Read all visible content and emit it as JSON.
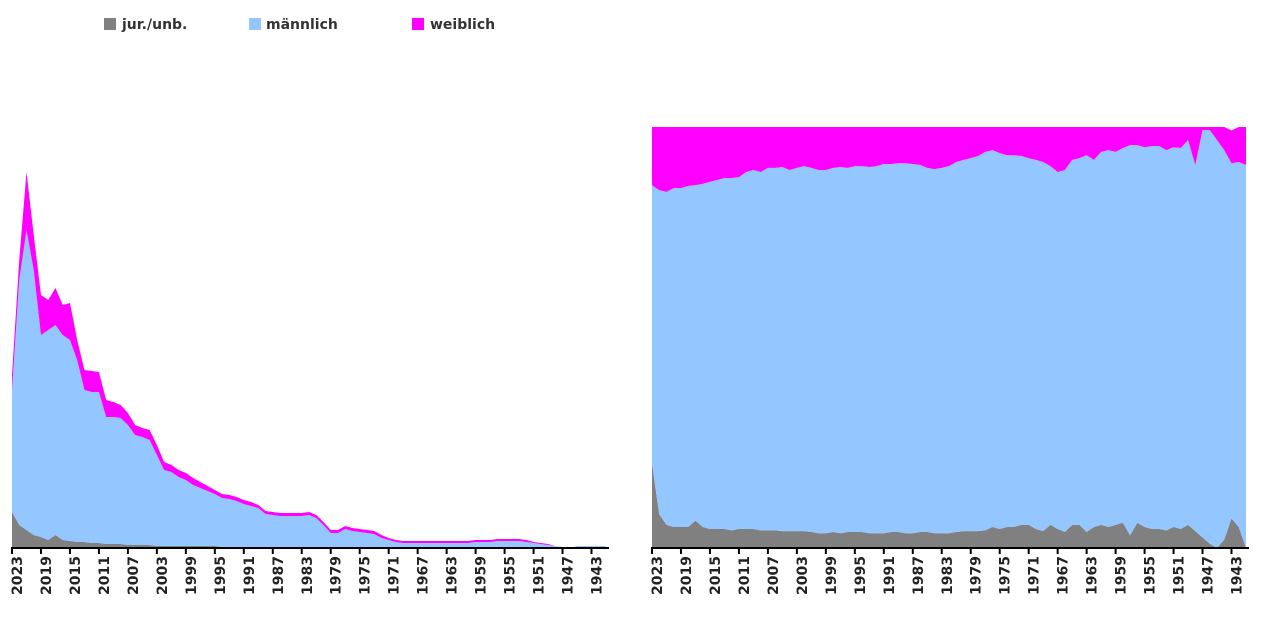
{
  "chart_data": [
    {
      "type": "stacked-area",
      "x": [
        2023,
        2022,
        2021,
        2020,
        2019,
        2018,
        2017,
        2016,
        2015,
        2014,
        2013,
        2012,
        2011,
        2010,
        2009,
        2008,
        2007,
        2006,
        2005,
        2004,
        2003,
        2002,
        2001,
        2000,
        1999,
        1998,
        1997,
        1996,
        1995,
        1994,
        1993,
        1992,
        1991,
        1990,
        1989,
        1988,
        1987,
        1986,
        1985,
        1984,
        1983,
        1982,
        1981,
        1980,
        1979,
        1978,
        1977,
        1976,
        1975,
        1974,
        1973,
        1972,
        1971,
        1970,
        1969,
        1968,
        1967,
        1966,
        1965,
        1964,
        1963,
        1962,
        1961,
        1960,
        1959,
        1958,
        1957,
        1956,
        1955,
        1954,
        1953,
        1952,
        1951,
        1950,
        1949,
        1948,
        1947,
        1946,
        1945,
        1944,
        1943,
        1942,
        1941
      ],
      "xticks": [
        2023,
        2019,
        2015,
        2011,
        2007,
        2003,
        1999,
        1995,
        1991,
        1987,
        1983,
        1979,
        1975,
        1971,
        1967,
        1963,
        1959,
        1955,
        1951,
        1947,
        1943
      ],
      "ylim": [
        0,
        380
      ],
      "series": [
        {
          "name": "jur./unb.",
          "color": "#808080",
          "values": [
            36,
            23,
            18,
            13,
            11,
            8,
            13,
            8,
            7,
            6,
            6,
            5,
            5,
            4,
            4,
            4,
            3,
            3,
            3,
            3,
            2,
            2,
            2,
            2,
            2,
            2,
            2,
            2,
            2,
            1,
            1,
            1,
            1,
            1,
            1,
            1,
            1,
            1,
            1,
            1,
            1,
            1,
            1,
            1,
            1,
            1,
            1,
            1,
            1,
            1,
            1,
            1,
            1,
            1,
            1,
            1,
            1,
            1,
            1,
            1,
            1,
            1,
            1,
            1,
            1,
            1,
            1,
            1,
            1,
            1,
            1,
            1,
            0.5,
            0.5,
            0.5,
            0,
            0,
            0,
            0,
            0,
            0,
            0,
            0
          ]
        },
        {
          "name": "männlich",
          "color": "#94c6ff",
          "values": [
            122,
            245,
            300,
            265,
            202,
            210,
            210,
            205,
            201,
            182,
            152,
            151,
            151,
            127,
            127,
            126,
            120,
            110,
            108,
            105,
            91,
            76,
            74,
            69,
            66,
            61,
            58,
            55,
            52,
            49,
            48,
            46,
            43,
            41,
            39,
            33,
            32,
            31,
            31,
            31,
            31,
            32,
            29,
            22,
            14,
            14,
            18,
            16,
            15,
            14,
            13,
            9,
            7,
            5,
            4,
            4,
            4,
            4,
            4,
            4,
            4,
            4,
            4,
            4,
            5,
            5,
            5,
            6,
            6,
            6,
            6,
            5,
            4.5,
            3.5,
            2.5,
            2,
            1,
            0,
            2,
            2,
            2,
            2,
            2
          ]
        },
        {
          "name": "weiblich",
          "color": "#ff00ff",
          "values": [
            15,
            20,
            58,
            35,
            40,
            30,
            37,
            30,
            37,
            20,
            20,
            21,
            20,
            17,
            15,
            13,
            12,
            10,
            9,
            10,
            10,
            8,
            7,
            7,
            7,
            7,
            6,
            5,
            4,
            4,
            4,
            4,
            4,
            4,
            3,
            3,
            3,
            3,
            3,
            3,
            3,
            3,
            3,
            3,
            3,
            3,
            3,
            3,
            3,
            3,
            3,
            3,
            2,
            2,
            2,
            2,
            2,
            2,
            2,
            2,
            2,
            2,
            2,
            2,
            2,
            2,
            2,
            2,
            2,
            2,
            2,
            2,
            1,
            1,
            1,
            0,
            0,
            0,
            0,
            0,
            0,
            0,
            0
          ]
        }
      ]
    },
    {
      "type": "stacked-area",
      "x": [
        2023,
        2022,
        2021,
        2020,
        2019,
        2018,
        2017,
        2016,
        2015,
        2014,
        2013,
        2012,
        2011,
        2010,
        2009,
        2008,
        2007,
        2006,
        2005,
        2004,
        2003,
        2002,
        2001,
        2000,
        1999,
        1998,
        1997,
        1996,
        1995,
        1994,
        1993,
        1992,
        1991,
        1990,
        1989,
        1988,
        1987,
        1986,
        1985,
        1984,
        1983,
        1982,
        1981,
        1980,
        1979,
        1978,
        1977,
        1976,
        1975,
        1974,
        1973,
        1972,
        1971,
        1970,
        1969,
        1968,
        1967,
        1966,
        1965,
        1964,
        1963,
        1962,
        1961,
        1960,
        1959,
        1958,
        1957,
        1956,
        1955,
        1954,
        1953,
        1952,
        1951,
        1950,
        1949,
        1948,
        1947,
        1946,
        1945,
        1944,
        1943,
        1942,
        1941
      ],
      "xticks": [
        2023,
        2019,
        2015,
        2011,
        2007,
        2003,
        1999,
        1995,
        1991,
        1987,
        1983,
        1979,
        1975,
        1971,
        1967,
        1963,
        1959,
        1955,
        1951,
        1947,
        1943
      ],
      "ylim": [
        0,
        100
      ],
      "series": [
        {
          "color": "#808080",
          "values": [
            20,
            8,
            5.5,
            5,
            5,
            5,
            6.5,
            5,
            4.5,
            4.5,
            4.5,
            4.2,
            4.5,
            4.5,
            4.5,
            4.2,
            4.2,
            4.2,
            4,
            4,
            4,
            4,
            3.8,
            3.5,
            3.5,
            3.8,
            3.5,
            3.8,
            3.8,
            3.8,
            3.5,
            3.5,
            3.5,
            3.8,
            3.8,
            3.5,
            3.5,
            3.8,
            3.8,
            3.5,
            3.5,
            3.5,
            3.8,
            4,
            4,
            4,
            4.2,
            5,
            4.5,
            5,
            5,
            5.5,
            5.5,
            4.5,
            4,
            5.5,
            4.5,
            3.8,
            5.5,
            5.5,
            3.8,
            5,
            5.5,
            5,
            5.5,
            6,
            3,
            6,
            5,
            4.5,
            4.5,
            4.2,
            5,
            4.5,
            5.5,
            4,
            2.5,
            1,
            0,
            2,
            7,
            5,
            0
          ]
        },
        {
          "color": "#94c6ff",
          "values": [
            66.2,
            77,
            79.1,
            80.5,
            80.5,
            81,
            79.7,
            81.5,
            82.5,
            82.9,
            83.4,
            83.7,
            83.6,
            84.8,
            85.3,
            85.1,
            86.1,
            86.1,
            86.5,
            85.8,
            86.3,
            86.7,
            86.5,
            86.3,
            86.3,
            86.5,
            87,
            86.5,
            86.9,
            86.9,
            87,
            87.2,
            87.7,
            87.4,
            87.6,
            87.9,
            87.7,
            87.2,
            86.5,
            86.5,
            86.8,
            87.2,
            87.9,
            88.2,
            88.6,
            89.1,
            89.9,
            89.5,
            89.3,
            88.3,
            88.3,
            87.6,
            87.1,
            87.7,
            87.7,
            85.2,
            84.8,
            86,
            86.7,
            87.1,
            89.5,
            87.2,
            88.6,
            89.5,
            88.6,
            89,
            92.7,
            89.7,
            90.2,
            91,
            91,
            90.3,
            90.2,
            90.5,
            91.4,
            87,
            96.8,
            98.3,
            96.9,
            92.5,
            84.4,
            86.7,
            91
          ]
        },
        {
          "color": "#ff00ff",
          "values": [
            13.8,
            15,
            15.4,
            14.5,
            14.5,
            14,
            13.8,
            13.5,
            13,
            12.6,
            12.1,
            12.1,
            11.9,
            10.7,
            10.2,
            10.7,
            9.7,
            9.7,
            9.5,
            10.2,
            9.7,
            9.3,
            9.7,
            10.2,
            10.2,
            9.7,
            9.5,
            9.7,
            9.3,
            9.3,
            9.5,
            9.3,
            8.8,
            8.8,
            8.6,
            8.6,
            8.8,
            9,
            9.7,
            10,
            9.7,
            9.3,
            8.3,
            7.8,
            7.4,
            6.9,
            5.9,
            5.5,
            6.2,
            6.7,
            6.7,
            6.9,
            7.4,
            7.8,
            8.3,
            9.3,
            10.7,
            10.2,
            7.8,
            7.4,
            6.7,
            7.8,
            5.9,
            5.5,
            5.9,
            5,
            4.3,
            4.3,
            4.8,
            4.5,
            4.5,
            5.5,
            4.8,
            5,
            3.1,
            9,
            0.7,
            0.7,
            3.1,
            5.5,
            7.8,
            8.3,
            9
          ]
        }
      ]
    }
  ]
}
